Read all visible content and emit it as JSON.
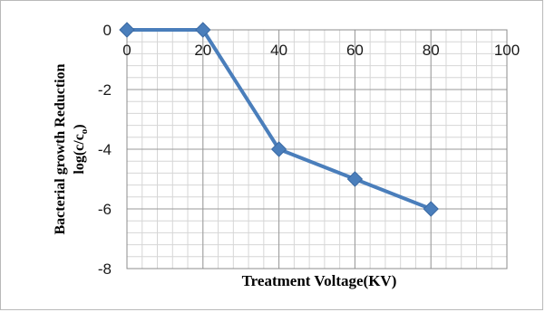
{
  "chart_data": {
    "type": "line",
    "title": "",
    "xlabel": "Treatment Voltage(KV)",
    "ylabel_line1": "Bacterial growth Reduction",
    "ylabel_line2_main": "log(c/c",
    "ylabel_line2_sub": "o",
    "ylabel_line2_end": ")",
    "xlim": [
      0,
      100
    ],
    "ylim": [
      -8,
      0
    ],
    "x_ticks": [
      "0",
      "20",
      "40",
      "60",
      "80",
      "100"
    ],
    "y_ticks": [
      "0",
      "-2",
      "-4",
      "-6",
      "-8"
    ],
    "major_grid": true,
    "minor_grid": true,
    "legend": "none",
    "series": [
      {
        "color": "#4a7ebb",
        "marker": "diamond",
        "x": [
          0,
          20,
          40,
          60,
          80
        ],
        "y": [
          0,
          0,
          -4,
          -5,
          -6
        ]
      }
    ]
  }
}
